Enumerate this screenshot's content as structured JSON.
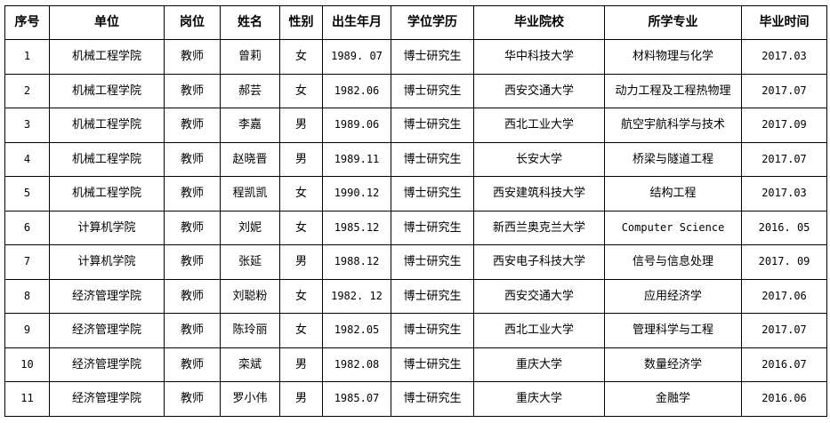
{
  "table": {
    "headers": [
      "序号",
      "单位",
      "岗位",
      "姓名",
      "性别",
      "出生年月",
      "学位学历",
      "毕业院校",
      "所学专业",
      "毕业时间"
    ],
    "rows": [
      [
        "1",
        "机械工程学院",
        "教师",
        "曾莉",
        "女",
        "1989. 07",
        "博士研究生",
        "华中科技大学",
        "材料物理与化学",
        "2017.03"
      ],
      [
        "2",
        "机械工程学院",
        "教师",
        "郝芸",
        "女",
        "1982.06",
        "博士研究生",
        "西安交通大学",
        "动力工程及工程热物理",
        "2017.07"
      ],
      [
        "3",
        "机械工程学院",
        "教师",
        "李嘉",
        "男",
        "1989.06",
        "博士研究生",
        "西北工业大学",
        "航空宇航科学与技术",
        "2017.09"
      ],
      [
        "4",
        "机械工程学院",
        "教师",
        "赵晓晋",
        "男",
        "1989.11",
        "博士研究生",
        "长安大学",
        "桥梁与隧道工程",
        "2017.07"
      ],
      [
        "5",
        "机械工程学院",
        "教师",
        "程凯凯",
        "女",
        "1990.12",
        "博士研究生",
        "西安建筑科技大学",
        "结构工程",
        "2017.03"
      ],
      [
        "6",
        "计算机学院",
        "教师",
        "刘妮",
        "女",
        "1985.12",
        "博士研究生",
        "新西兰奥克兰大学",
        "Computer Science",
        "2016. 05"
      ],
      [
        "7",
        "计算机学院",
        "教师",
        "张延",
        "男",
        "1988.12",
        "博士研究生",
        "西安电子科技大学",
        "信号与信息处理",
        "2017. 09"
      ],
      [
        "8",
        "经济管理学院",
        "教师",
        "刘聪粉",
        "女",
        "1982. 12",
        "博士研究生",
        "西安交通大学",
        "应用经济学",
        "2017.06"
      ],
      [
        "9",
        "经济管理学院",
        "教师",
        "陈玲丽",
        "女",
        "1982.05",
        "博士研究生",
        "西北工业大学",
        "管理科学与工程",
        "2017.07"
      ],
      [
        "10",
        "经济管理学院",
        "教师",
        "栾斌",
        "男",
        "1982.08",
        "博士研究生",
        "重庆大学",
        "数量经济学",
        "2016.07"
      ],
      [
        "11",
        "经济管理学院",
        "教师",
        "罗小伟",
        "男",
        "1985.07",
        "博士研究生",
        "重庆大学",
        "金融学",
        "2016.06"
      ]
    ]
  }
}
